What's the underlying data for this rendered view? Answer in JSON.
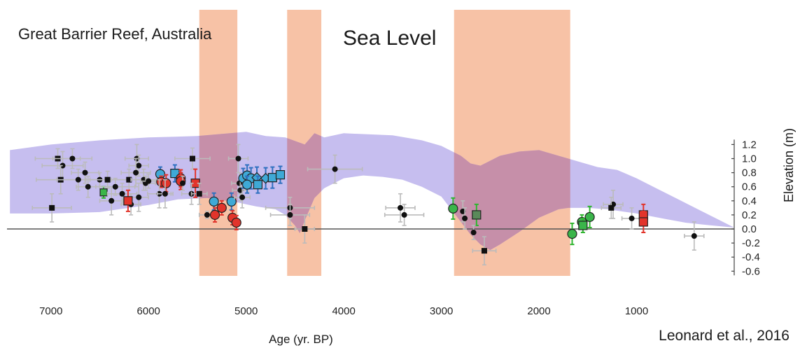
{
  "chart_data": {
    "type": "scatter",
    "title": "Sea Level",
    "subtitle": "Great Barrier Reef, Australia",
    "citation": "Leonard et al., 2016",
    "xlabel": "Age (yr. BP)",
    "ylabel": "Elevation (m)",
    "xlim": [
      7450,
      0
    ],
    "ylim": [
      -0.6,
      1.25
    ],
    "x_ticks": [
      7000,
      6000,
      5000,
      4000,
      3000,
      2000,
      1000
    ],
    "y_ticks": [
      1.2,
      1.0,
      0.8,
      0.6,
      0.4,
      0.2,
      0.0,
      -0.2,
      -0.4,
      -0.6
    ],
    "y_tick_labels": [
      "1.2",
      "1.0",
      "0.8",
      "0.6",
      "0.4",
      "0.2",
      "0.0",
      "-0.2",
      "-0.4",
      "-0.6"
    ],
    "x_tick_labels": [
      "7000",
      "6000",
      "5000",
      "4000",
      "3000",
      "2000",
      "1000"
    ],
    "colors": {
      "envelope": "#b9b0ec",
      "highlight": "#f7c2a6",
      "overlap": "#c68fa9",
      "black": "#111111",
      "blue": "#3fa9d6",
      "red": "#e2342b",
      "green": "#3ab54a",
      "greenDark": "#5a8a5a",
      "errGray": "#bbbbbb",
      "errBlue": "#2f70c0",
      "errRed": "#e2342b",
      "errGreen": "#2fb52f"
    },
    "highlight_intervals": [
      [
        5480,
        5090
      ],
      [
        4580,
        4230
      ],
      [
        2870,
        1680
      ]
    ],
    "envelope_upper": [
      [
        7420,
        1.12
      ],
      [
        7000,
        1.2
      ],
      [
        6500,
        1.26
      ],
      [
        6000,
        1.3
      ],
      [
        5500,
        1.32
      ],
      [
        5000,
        1.38
      ],
      [
        4800,
        1.32
      ],
      [
        4600,
        1.3
      ],
      [
        4400,
        1.2
      ],
      [
        4300,
        1.36
      ],
      [
        4200,
        1.3
      ],
      [
        4000,
        1.36
      ],
      [
        3500,
        1.33
      ],
      [
        3200,
        1.26
      ],
      [
        3000,
        1.18
      ],
      [
        2800,
        1.04
      ],
      [
        2700,
        0.93
      ],
      [
        2600,
        0.9
      ],
      [
        2400,
        1.04
      ],
      [
        2200,
        1.1
      ],
      [
        2000,
        1.12
      ],
      [
        1700,
        1.0
      ],
      [
        1400,
        0.88
      ],
      [
        1200,
        0.84
      ],
      [
        1000,
        0.72
      ],
      [
        800,
        0.58
      ],
      [
        600,
        0.44
      ],
      [
        400,
        0.3
      ],
      [
        200,
        0.16
      ],
      [
        0,
        0.02
      ]
    ],
    "envelope_lower": [
      [
        0,
        0.02
      ],
      [
        300,
        0.06
      ],
      [
        500,
        0.09
      ],
      [
        700,
        0.14
      ],
      [
        1000,
        0.22
      ],
      [
        1300,
        0.28
      ],
      [
        1500,
        0.3
      ],
      [
        1700,
        0.3
      ],
      [
        1800,
        0.28
      ],
      [
        2000,
        0.16
      ],
      [
        2200,
        -0.04
      ],
      [
        2400,
        -0.22
      ],
      [
        2500,
        -0.3
      ],
      [
        2600,
        -0.22
      ],
      [
        2700,
        -0.08
      ],
      [
        2800,
        0.1
      ],
      [
        2900,
        0.28
      ],
      [
        3000,
        0.46
      ],
      [
        3200,
        0.6
      ],
      [
        3400,
        0.7
      ],
      [
        3600,
        0.74
      ],
      [
        3800,
        0.76
      ],
      [
        4000,
        0.72
      ],
      [
        4200,
        0.58
      ],
      [
        4300,
        0.44
      ],
      [
        4400,
        0.12
      ],
      [
        4450,
        -0.06
      ],
      [
        4500,
        0.05
      ],
      [
        4600,
        0.2
      ],
      [
        4700,
        0.28
      ],
      [
        4900,
        0.32
      ],
      [
        5100,
        0.38
      ],
      [
        5400,
        0.44
      ],
      [
        5700,
        0.42
      ],
      [
        6000,
        0.34
      ],
      [
        6500,
        0.24
      ],
      [
        7000,
        0.22
      ],
      [
        7420,
        0.22
      ]
    ],
    "points": [
      {
        "x": 6930,
        "y": 1.0,
        "xe": 230,
        "ye": 0.14,
        "m": "square",
        "c": "black"
      },
      {
        "x": 6780,
        "y": 1.0,
        "xe": 200,
        "ye": 0.14,
        "m": "circle",
        "c": "black"
      },
      {
        "x": 6880,
        "y": 0.9,
        "xe": 210,
        "ye": 0.2,
        "m": "circle",
        "c": "black"
      },
      {
        "x": 6650,
        "y": 0.8,
        "xe": 140,
        "ye": 0.15,
        "m": "circle",
        "c": "black"
      },
      {
        "x": 6900,
        "y": 0.7,
        "xe": 250,
        "ye": 0.2,
        "m": "square",
        "c": "black"
      },
      {
        "x": 6720,
        "y": 0.7,
        "xe": 220,
        "ye": 0.15,
        "m": "circle",
        "c": "black"
      },
      {
        "x": 6620,
        "y": 0.6,
        "xe": 120,
        "ye": 0.15,
        "m": "circle",
        "c": "black"
      },
      {
        "x": 6500,
        "y": 0.7,
        "xe": 100,
        "ye": 0.1,
        "m": "circle",
        "c": "black"
      },
      {
        "x": 6420,
        "y": 0.7,
        "xe": 220,
        "ye": 0.12,
        "m": "square",
        "c": "black"
      },
      {
        "x": 6460,
        "y": 0.52,
        "xe": 0,
        "ye": 0.08,
        "m": "x",
        "c": "green"
      },
      {
        "x": 6380,
        "y": 0.4,
        "xe": 120,
        "ye": 0.2,
        "m": "circle",
        "c": "black"
      },
      {
        "x": 6340,
        "y": 0.6,
        "xe": 200,
        "ye": 0.12,
        "m": "circle",
        "c": "black"
      },
      {
        "x": 6270,
        "y": 0.5,
        "xe": 150,
        "ye": 0.15,
        "m": "circle",
        "c": "black"
      },
      {
        "x": 6200,
        "y": 0.7,
        "xe": 180,
        "ye": 0.15,
        "m": "square",
        "c": "black"
      },
      {
        "x": 6120,
        "y": 1.0,
        "xe": 120,
        "ye": 0.2,
        "m": "circle",
        "c": "black"
      },
      {
        "x": 6100,
        "y": 0.9,
        "xe": 100,
        "ye": 0.15,
        "m": "circle",
        "c": "black"
      },
      {
        "x": 6130,
        "y": 0.8,
        "xe": 150,
        "ye": 0.2,
        "m": "circle",
        "c": "black"
      },
      {
        "x": 6050,
        "y": 0.7,
        "xe": 130,
        "ye": 0.15,
        "m": "circle",
        "c": "black"
      },
      {
        "x": 6030,
        "y": 0.65,
        "xe": 100,
        "ye": 0.1,
        "m": "circle",
        "c": "black"
      },
      {
        "x": 6000,
        "y": 0.68,
        "xe": 80,
        "ye": 0.1,
        "m": "circle",
        "c": "black"
      },
      {
        "x": 6100,
        "y": 0.45,
        "xe": 100,
        "ye": 0.2,
        "m": "circle",
        "c": "black"
      },
      {
        "x": 6180,
        "y": 0.35,
        "xe": 100,
        "ye": 0.15,
        "m": "circle",
        "c": "black"
      },
      {
        "x": 6210,
        "y": 0.4,
        "xe": 0,
        "ye": 0.15,
        "m": "square",
        "c": "red"
      },
      {
        "x": 6990,
        "y": 0.3,
        "xe": 200,
        "ye": 0.2,
        "m": "square",
        "c": "black"
      },
      {
        "x": 5880,
        "y": 0.78,
        "xe": 0,
        "ye": 0.1,
        "m": "circle",
        "c": "blue"
      },
      {
        "x": 5870,
        "y": 0.67,
        "xe": 0,
        "ye": 0.08,
        "m": "circle",
        "c": "red"
      },
      {
        "x": 5820,
        "y": 0.65,
        "xe": 0,
        "ye": 0.12,
        "m": "circle",
        "c": "red"
      },
      {
        "x": 5890,
        "y": 0.5,
        "xe": 120,
        "ye": 0.2,
        "m": "circle",
        "c": "black"
      },
      {
        "x": 5830,
        "y": 0.5,
        "xe": 80,
        "ye": 0.2,
        "m": "circle",
        "c": "black"
      },
      {
        "x": 5730,
        "y": 0.79,
        "xe": 0,
        "ye": 0.12,
        "m": "square",
        "c": "blue"
      },
      {
        "x": 5670,
        "y": 0.72,
        "xe": 0,
        "ye": 0.12,
        "m": "circle",
        "c": "red"
      },
      {
        "x": 5670,
        "y": 0.68,
        "xe": 0,
        "ye": 0.12,
        "m": "circle",
        "c": "red"
      },
      {
        "x": 5650,
        "y": 0.65,
        "xe": 0,
        "ye": 0.1,
        "m": "circle",
        "c": "black"
      },
      {
        "x": 5550,
        "y": 1.0,
        "xe": 180,
        "ye": 0.15,
        "m": "square",
        "c": "black"
      },
      {
        "x": 5520,
        "y": 0.65,
        "xe": 0,
        "ye": 0.2,
        "m": "square",
        "c": "red"
      },
      {
        "x": 5560,
        "y": 0.5,
        "xe": 100,
        "ye": 0.15,
        "m": "circle",
        "c": "black"
      },
      {
        "x": 5480,
        "y": 0.5,
        "xe": 80,
        "ye": 0.15,
        "m": "square",
        "c": "black"
      },
      {
        "x": 5400,
        "y": 0.2,
        "xe": 80,
        "ye": 0.05,
        "m": "circle",
        "c": "black"
      },
      {
        "x": 5330,
        "y": 0.39,
        "xe": 0,
        "ye": 0.12,
        "m": "circle",
        "c": "blue"
      },
      {
        "x": 5320,
        "y": 0.2,
        "xe": 0,
        "ye": 0.1,
        "m": "circle",
        "c": "red"
      },
      {
        "x": 5250,
        "y": 0.3,
        "xe": 0,
        "ye": 0.1,
        "m": "circle",
        "c": "red"
      },
      {
        "x": 5150,
        "y": 0.39,
        "xe": 0,
        "ye": 0.12,
        "m": "circle",
        "c": "blue"
      },
      {
        "x": 5140,
        "y": 0.16,
        "xe": 0,
        "ye": 0.1,
        "m": "circle",
        "c": "red"
      },
      {
        "x": 5100,
        "y": 0.09,
        "xe": 0,
        "ye": 0.1,
        "m": "circle",
        "c": "red"
      },
      {
        "x": 5080,
        "y": 1.0,
        "xe": 100,
        "ye": 0.2,
        "m": "circle",
        "c": "black"
      },
      {
        "x": 5070,
        "y": 0.65,
        "xe": 80,
        "ye": 0.15,
        "m": "circle",
        "c": "black"
      },
      {
        "x": 5060,
        "y": 0.55,
        "xe": 80,
        "ye": 0.15,
        "m": "circle",
        "c": "black"
      },
      {
        "x": 5040,
        "y": 0.45,
        "xe": 80,
        "ye": 0.15,
        "m": "circle",
        "c": "black"
      },
      {
        "x": 5030,
        "y": 0.72,
        "xe": 0,
        "ye": 0.14,
        "m": "circle",
        "c": "blue"
      },
      {
        "x": 4990,
        "y": 0.76,
        "xe": 0,
        "ye": 0.15,
        "m": "circle",
        "c": "blue"
      },
      {
        "x": 4950,
        "y": 0.72,
        "xe": 0,
        "ye": 0.15,
        "m": "circle",
        "c": "blue"
      },
      {
        "x": 4990,
        "y": 0.63,
        "xe": 0,
        "ye": 0.12,
        "m": "circle",
        "c": "blue"
      },
      {
        "x": 4890,
        "y": 0.73,
        "xe": 0,
        "ye": 0.15,
        "m": "diamond",
        "c": "blue"
      },
      {
        "x": 4880,
        "y": 0.63,
        "xe": 0,
        "ye": 0.12,
        "m": "square",
        "c": "blue"
      },
      {
        "x": 4800,
        "y": 0.72,
        "xe": 0,
        "ye": 0.15,
        "m": "diamond",
        "c": "blue"
      },
      {
        "x": 4730,
        "y": 0.73,
        "xe": 0,
        "ye": 0.15,
        "m": "square",
        "c": "blue"
      },
      {
        "x": 4650,
        "y": 0.77,
        "xe": 0,
        "ye": 0.12,
        "m": "square",
        "c": "blue"
      },
      {
        "x": 4550,
        "y": 0.3,
        "xe": 250,
        "ye": 0.15,
        "m": "circle",
        "c": "black"
      },
      {
        "x": 4550,
        "y": 0.2,
        "xe": 200,
        "ye": 0.15,
        "m": "circle",
        "c": "black"
      },
      {
        "x": 4400,
        "y": 0.0,
        "xe": 100,
        "ye": 0.2,
        "m": "square",
        "c": "black"
      },
      {
        "x": 4090,
        "y": 0.85,
        "xe": 280,
        "ye": 0.2,
        "m": "circle",
        "c": "black"
      },
      {
        "x": 3420,
        "y": 0.3,
        "xe": 150,
        "ye": 0.2,
        "m": "circle",
        "c": "black"
      },
      {
        "x": 3380,
        "y": 0.2,
        "xe": 200,
        "ye": 0.15,
        "m": "circle",
        "c": "black"
      },
      {
        "x": 2880,
        "y": 0.29,
        "xe": 0,
        "ye": 0.15,
        "m": "circle",
        "c": "green"
      },
      {
        "x": 2780,
        "y": 0.25,
        "xe": 0,
        "ye": 0.15,
        "m": "circle",
        "c": "black"
      },
      {
        "x": 2760,
        "y": 0.15,
        "xe": 0,
        "ye": 0.15,
        "m": "circle",
        "c": "black"
      },
      {
        "x": 2640,
        "y": 0.2,
        "xe": 0,
        "ye": 0.15,
        "m": "square",
        "c": "greenDark"
      },
      {
        "x": 2670,
        "y": -0.05,
        "xe": 0,
        "ye": 0.1,
        "m": "circle",
        "c": "black"
      },
      {
        "x": 2560,
        "y": -0.31,
        "xe": 120,
        "ye": 0.2,
        "m": "square",
        "c": "black"
      },
      {
        "x": 1660,
        "y": -0.07,
        "xe": 0,
        "ye": 0.15,
        "m": "circle",
        "c": "green"
      },
      {
        "x": 1560,
        "y": 0.1,
        "xe": 0,
        "ye": 0.1,
        "m": "circle",
        "c": "green"
      },
      {
        "x": 1550,
        "y": 0.05,
        "xe": 0,
        "ye": 0.1,
        "m": "square",
        "c": "green"
      },
      {
        "x": 1480,
        "y": 0.17,
        "xe": 0,
        "ye": 0.15,
        "m": "circle",
        "c": "green"
      },
      {
        "x": 1240,
        "y": 0.35,
        "xe": 100,
        "ye": 0.2,
        "m": "circle",
        "c": "black"
      },
      {
        "x": 1260,
        "y": 0.3,
        "xe": 100,
        "ye": 0.15,
        "m": "square",
        "c": "black"
      },
      {
        "x": 1050,
        "y": 0.15,
        "xe": 100,
        "ye": 0.15,
        "m": "circle",
        "c": "black"
      },
      {
        "x": 930,
        "y": 0.2,
        "xe": 0,
        "ye": 0.15,
        "m": "square",
        "c": "red"
      },
      {
        "x": 930,
        "y": 0.1,
        "xe": 0,
        "ye": 0.15,
        "m": "square",
        "c": "red"
      },
      {
        "x": 410,
        "y": -0.1,
        "xe": 100,
        "ye": 0.2,
        "m": "circle",
        "c": "black"
      }
    ]
  }
}
